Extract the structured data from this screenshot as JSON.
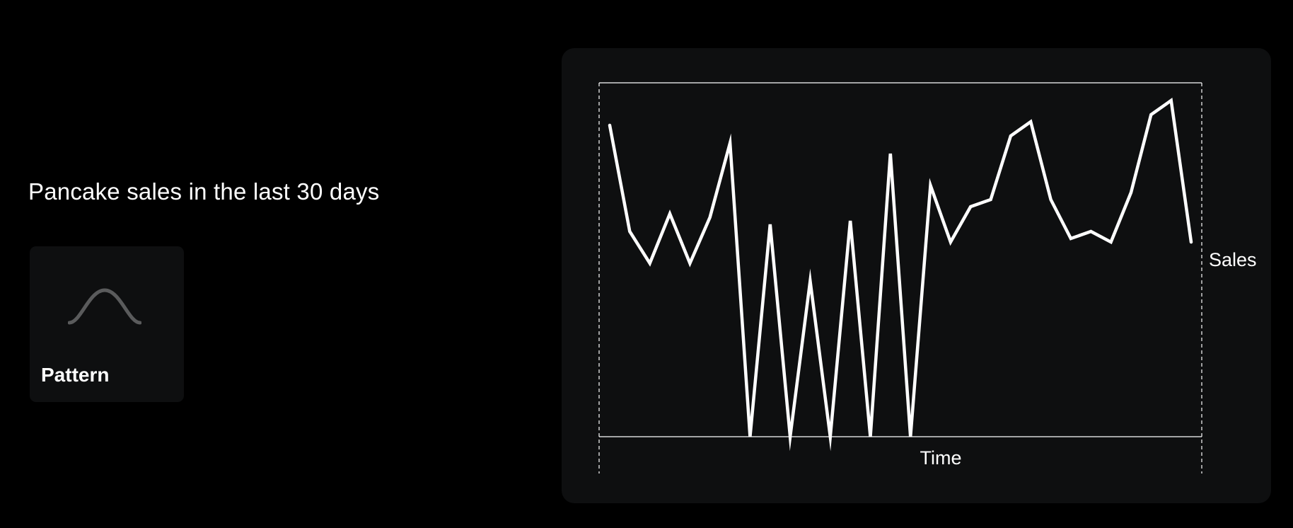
{
  "heading": "Pancake sales in the last 30 days",
  "pattern_card": {
    "label": "Pattern",
    "icon": "bell-curve-icon",
    "icon_color": "#5a5b5c"
  },
  "colors": {
    "background": "#000000",
    "card": "#0e0f10",
    "line": "#ffffff",
    "frame": "#ffffff"
  },
  "chart_data": {
    "type": "line",
    "title": "",
    "xlabel": "Time",
    "ylabel": "Sales",
    "x": [
      1,
      2,
      3,
      4,
      5,
      6,
      7,
      8,
      9,
      10,
      11,
      12,
      13,
      14,
      15,
      16,
      17,
      18,
      19,
      20,
      21,
      22,
      23,
      24,
      25,
      26,
      27,
      28,
      29,
      30
    ],
    "values": [
      88,
      58,
      49,
      63,
      49,
      62,
      83,
      0,
      60,
      0,
      44,
      0,
      61,
      0,
      80,
      0,
      71,
      55,
      65,
      67,
      85,
      89,
      67,
      56,
      58,
      55,
      69,
      91,
      95,
      55
    ],
    "ylim": [
      0,
      100
    ],
    "grid": false,
    "axis_ticks": false,
    "frame": "top and bottom solid lines, dashed vertical sides"
  }
}
